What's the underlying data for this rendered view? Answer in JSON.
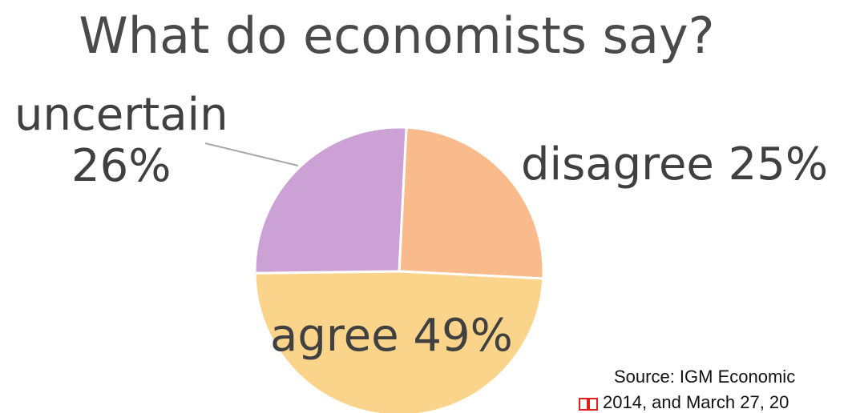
{
  "chart_data": {
    "type": "pie",
    "title": "What do economists say?",
    "slices": [
      {
        "name": "disagree",
        "value": 25,
        "label": "disagree 25%",
        "color": "#f9ba8c"
      },
      {
        "name": "agree",
        "value": 49,
        "label": "agree 49%",
        "color": "#f9d48a"
      },
      {
        "name": "uncertain",
        "value": 26,
        "label_line1": "uncertain",
        "label_line2": "26%",
        "color": "#cca2d6"
      }
    ],
    "legend": "none"
  },
  "source": {
    "line1": "Source: IGM Economic",
    "line2": "2014, and March 27, 20",
    "icon": "book-icon",
    "icon_color": "#e0201c"
  }
}
